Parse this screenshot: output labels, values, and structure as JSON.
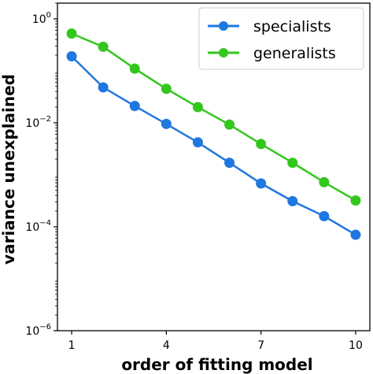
{
  "chart_data": {
    "type": "line",
    "xlabel": "order of fitting model",
    "ylabel": "variance unexplained",
    "yscale": "log",
    "xlim": [
      0.55,
      10.45
    ],
    "ylim": [
      1e-06,
      2.0
    ],
    "x": [
      1,
      2,
      3,
      4,
      5,
      6,
      7,
      8,
      9,
      10
    ],
    "xticks": [
      1,
      4,
      7,
      10
    ],
    "yticks": [
      {
        "value": 1e-06,
        "base": "10",
        "exp": "−6"
      },
      {
        "value": 0.0001,
        "base": "10",
        "exp": "−4"
      },
      {
        "value": 0.01,
        "base": "10",
        "exp": "−2"
      },
      {
        "value": 1,
        "base": "10",
        "exp": "0"
      }
    ],
    "grid": false,
    "legend_position": "top-right",
    "series": [
      {
        "name": "specialists",
        "color": "#1f77e0",
        "values": [
          0.19,
          0.048,
          0.021,
          0.0095,
          0.0042,
          0.0017,
          0.00068,
          0.00031,
          0.00016,
          7e-05
        ]
      },
      {
        "name": "generalists",
        "color": "#33c71d",
        "values": [
          0.52,
          0.29,
          0.11,
          0.045,
          0.02,
          0.0092,
          0.0039,
          0.0017,
          0.00072,
          0.00032
        ]
      }
    ]
  }
}
